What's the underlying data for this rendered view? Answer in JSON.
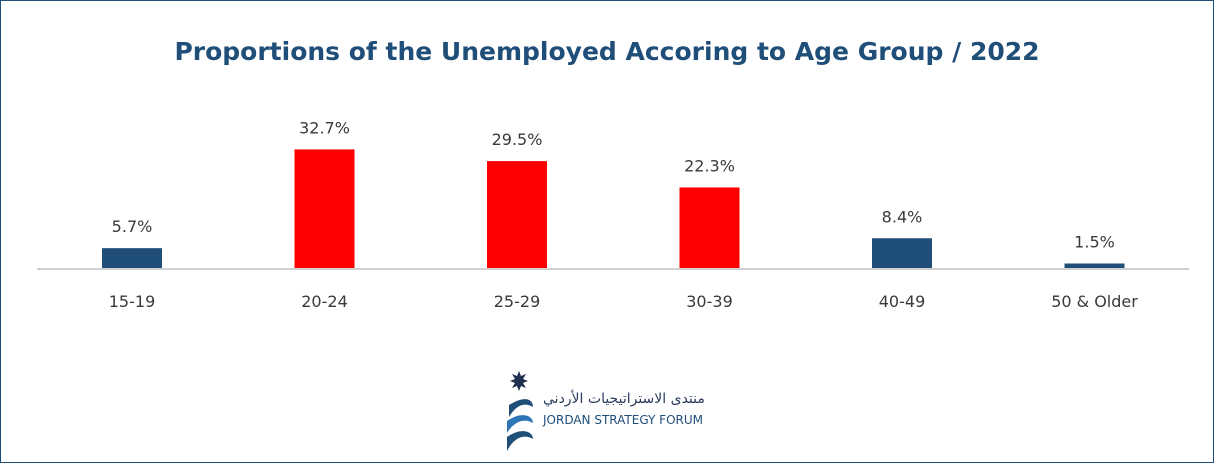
{
  "chart_data": {
    "type": "bar",
    "title": "Proportions of the Unemployed Accoring to Age Group / 2022",
    "categories": [
      "15-19",
      "20-24",
      "25-29",
      "30-39",
      "40-49",
      "50 & Older"
    ],
    "values": [
      5.7,
      32.7,
      29.5,
      22.3,
      8.4,
      1.5
    ],
    "value_labels": [
      "5.7%",
      "32.7%",
      "29.5%",
      "22.3%",
      "8.4%",
      "1.5%"
    ],
    "bar_colors": [
      "#1f4e79",
      "#ff0000",
      "#ff0000",
      "#ff0000",
      "#1f4e79",
      "#1f4e79"
    ],
    "xlabel": "",
    "ylabel": "",
    "ylim": [
      0,
      35
    ],
    "grid": false,
    "legend": "none"
  },
  "logo": {
    "arabic_name": "منتدى الاستراتيجيات الأردني",
    "english_name": "JORDAN STRATEGY FORUM"
  },
  "colors": {
    "navy": "#1f4e79",
    "red": "#ff0000",
    "frame": "#1f4e79"
  }
}
